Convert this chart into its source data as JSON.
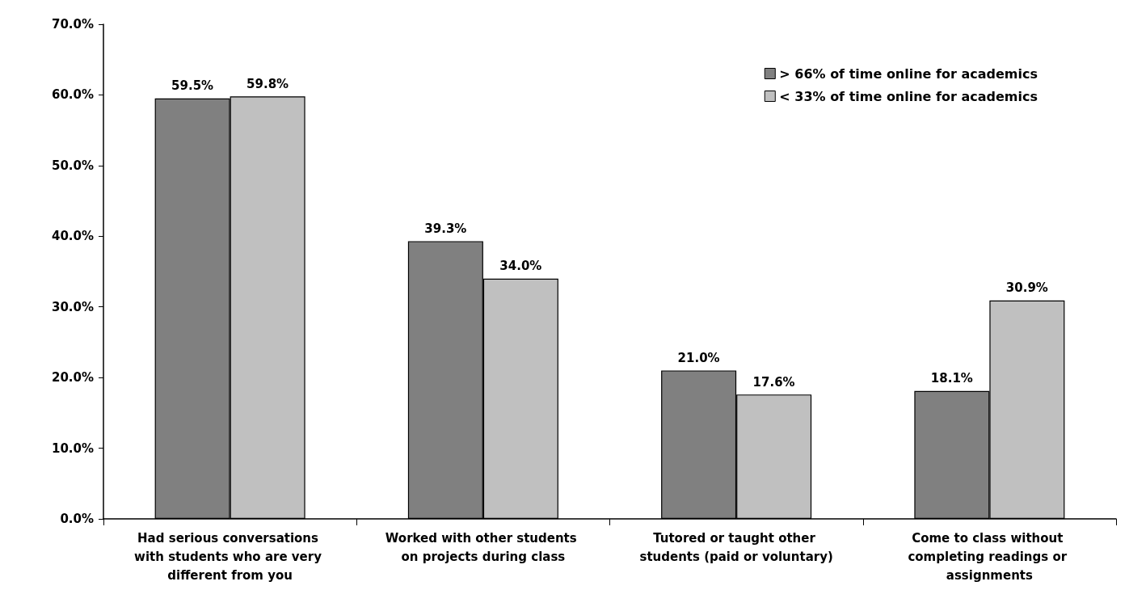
{
  "chart_data": {
    "type": "bar",
    "categories": [
      "Had serious conversations with students who are very different from you",
      "Worked with other students on projects during class",
      "Tutored or taught other students (paid or voluntary)",
      "Come to class without completing readings or assignments"
    ],
    "series": [
      {
        "name": "> 66% of time online for academics",
        "color": "#808080",
        "values": [
          59.5,
          39.3,
          21.0,
          18.1
        ],
        "value_labels": [
          "59.5%",
          "39.3%",
          "21.0%",
          "18.1%"
        ]
      },
      {
        "name": "< 33% of time online for academics",
        "color": "#c0c0c0",
        "values": [
          59.8,
          34.0,
          17.6,
          30.9
        ],
        "value_labels": [
          "59.8%",
          "34.0%",
          "17.6%",
          "30.9%"
        ]
      }
    ],
    "ylim": [
      0,
      70
    ],
    "yticks": [
      {
        "value": 0,
        "label": "0.0%"
      },
      {
        "value": 10,
        "label": "10.0%"
      },
      {
        "value": 20,
        "label": "20.0%"
      },
      {
        "value": 30,
        "label": "30.0%"
      },
      {
        "value": 40,
        "label": "40.0%"
      },
      {
        "value": 50,
        "label": "50.0%"
      },
      {
        "value": 60,
        "label": "60.0%"
      },
      {
        "value": 70,
        "label": "70.0%"
      }
    ],
    "grid": false,
    "legend": "top right"
  }
}
